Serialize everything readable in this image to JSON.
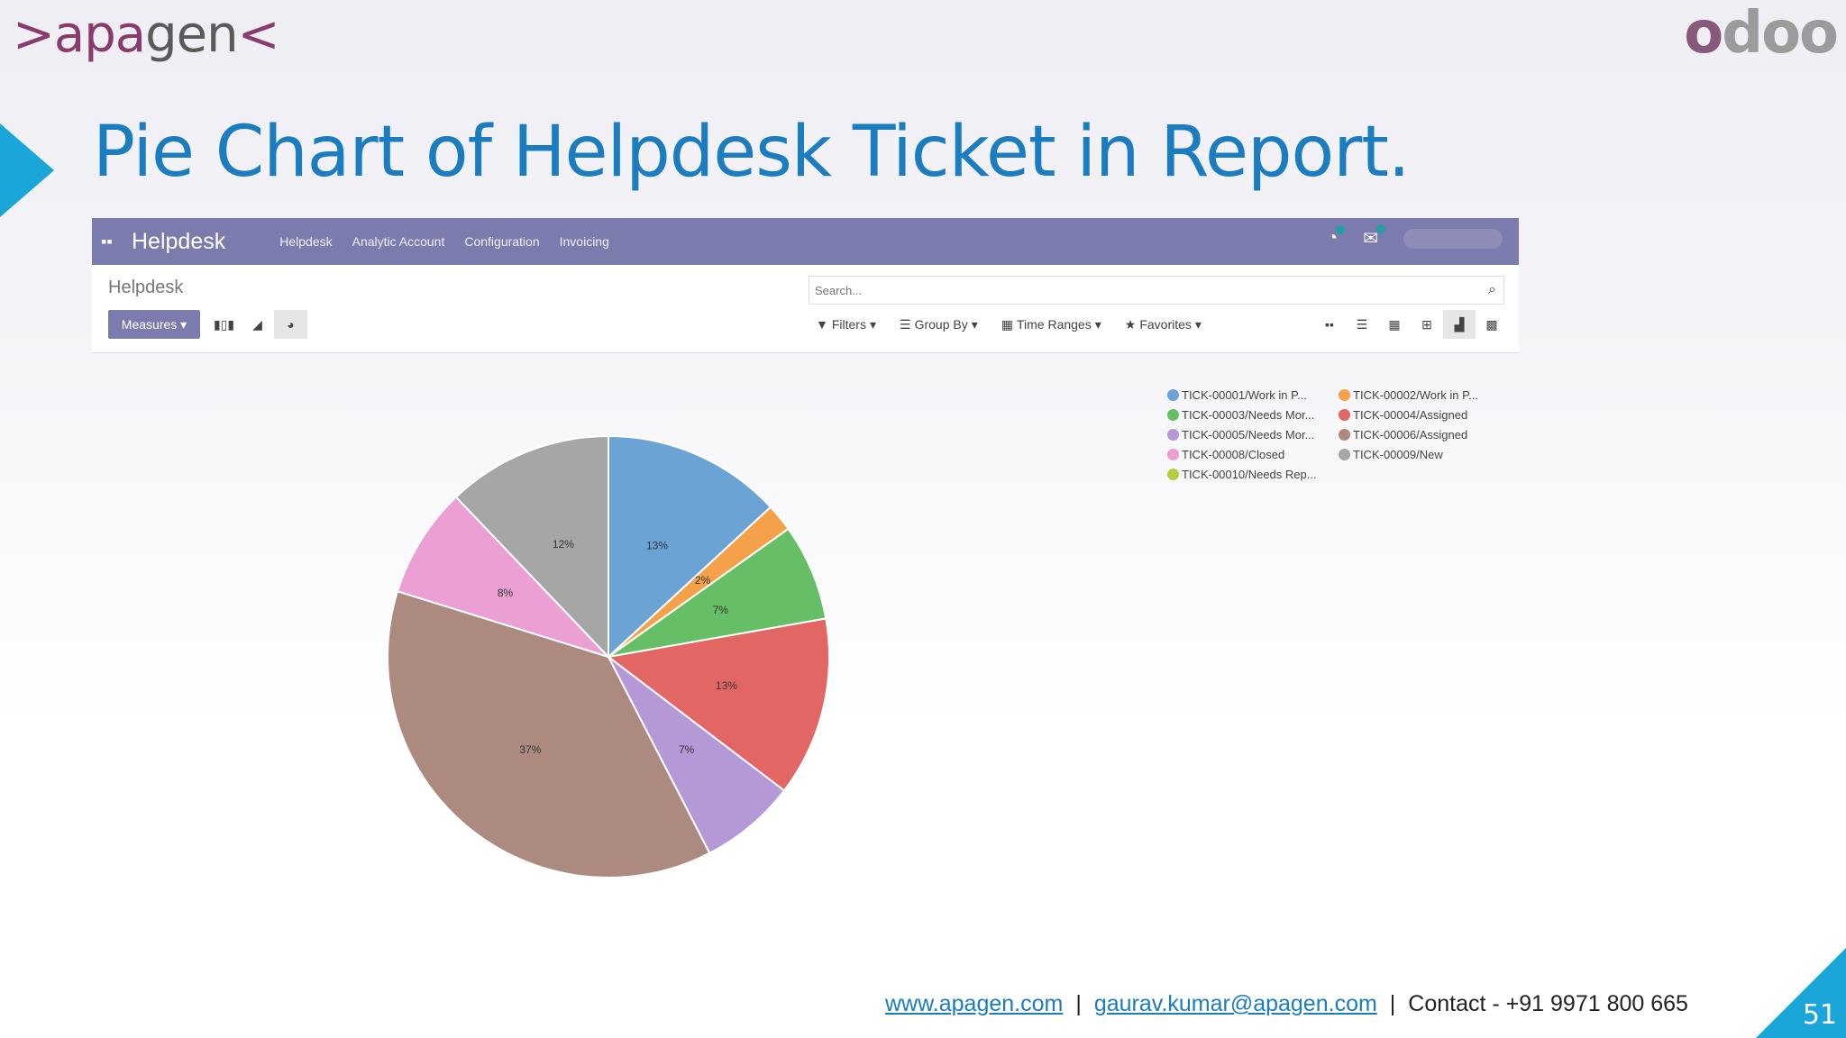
{
  "brand": {
    "left_logo": ">apagen<",
    "right_logo": "odoo"
  },
  "slide": {
    "title": "Pie Chart of Helpdesk Ticket in Report.",
    "page_number": "51"
  },
  "topbar": {
    "app_name": "Helpdesk",
    "menus": [
      "Helpdesk",
      "Analytic Account",
      "Configuration",
      "Invoicing"
    ]
  },
  "control_panel": {
    "breadcrumb": "Helpdesk",
    "measures_label": "Measures",
    "search_placeholder": "Search...",
    "filters": [
      "Filters",
      "Group By",
      "Time Ranges",
      "Favorites"
    ]
  },
  "footer": {
    "website": "www.apagen.com",
    "email": "gaurav.kumar@apagen.com",
    "contact": "Contact - +91 9971 800 665"
  },
  "chart_data": {
    "type": "pie",
    "title": "",
    "legend_placement": "top-right",
    "slices": [
      {
        "label": "TICK-00001/Work in P...",
        "value": 13,
        "color": "#6aa3d4"
      },
      {
        "label": "TICK-00002/Work in P...",
        "value": 2,
        "color": "#f4a14a"
      },
      {
        "label": "TICK-00003/Needs Mor...",
        "value": 7,
        "color": "#66bf66"
      },
      {
        "label": "TICK-00004/Assigned",
        "value": 13,
        "color": "#e26664"
      },
      {
        "label": "TICK-00005/Needs Mor...",
        "value": 7,
        "color": "#b598d6"
      },
      {
        "label": "TICK-00006/Assigned",
        "value": 37,
        "color": "#ad8a80"
      },
      {
        "label": "TICK-00008/Closed",
        "value": 8,
        "color": "#eb9fd3"
      },
      {
        "label": "TICK-00009/New",
        "value": 12,
        "color": "#a6a6a6"
      },
      {
        "label": "TICK-00010/Needs Rep...",
        "value": 0,
        "color": "#b7cc44"
      }
    ],
    "data_labels": [
      "13%",
      "2%",
      "7%",
      "13%",
      "7%",
      "37%",
      "8%",
      "12%",
      ""
    ]
  }
}
